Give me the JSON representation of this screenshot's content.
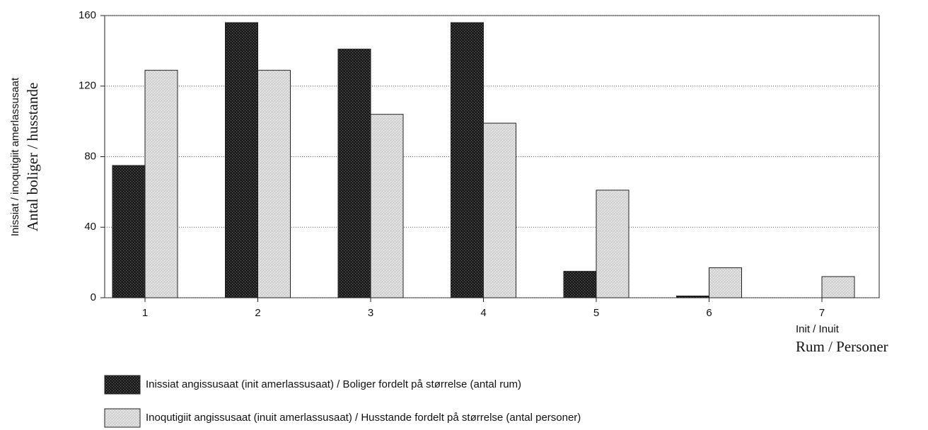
{
  "chart_data": {
    "type": "bar",
    "ylabel": [
      "Inissiat / inoqutigiit amerlassusaat",
      "Antal boliger / husstande"
    ],
    "xlabel": [
      "Init / Inuit",
      "Rum / Personer"
    ],
    "categories": [
      "1",
      "2",
      "3",
      "4",
      "5",
      "6",
      "7"
    ],
    "series": [
      {
        "name": "Inissiat angissusaat (init amerlassusaat)  / Boliger fordelt på størrelse (antal rum)",
        "color": "#1c1c1c",
        "values": [
          75,
          156,
          141,
          156,
          15,
          1,
          0
        ]
      },
      {
        "name": "Inoqutigiit angissusaat (inuit amerlassusaat)  / Husstande fordelt på størrelse (antal personer)",
        "color": "#d4d4d4",
        "values": [
          129,
          129,
          104,
          99,
          61,
          17,
          12
        ]
      }
    ],
    "ylim": [
      0,
      160
    ],
    "yticks": [
      0,
      40,
      80,
      120,
      160
    ],
    "grid": true
  }
}
